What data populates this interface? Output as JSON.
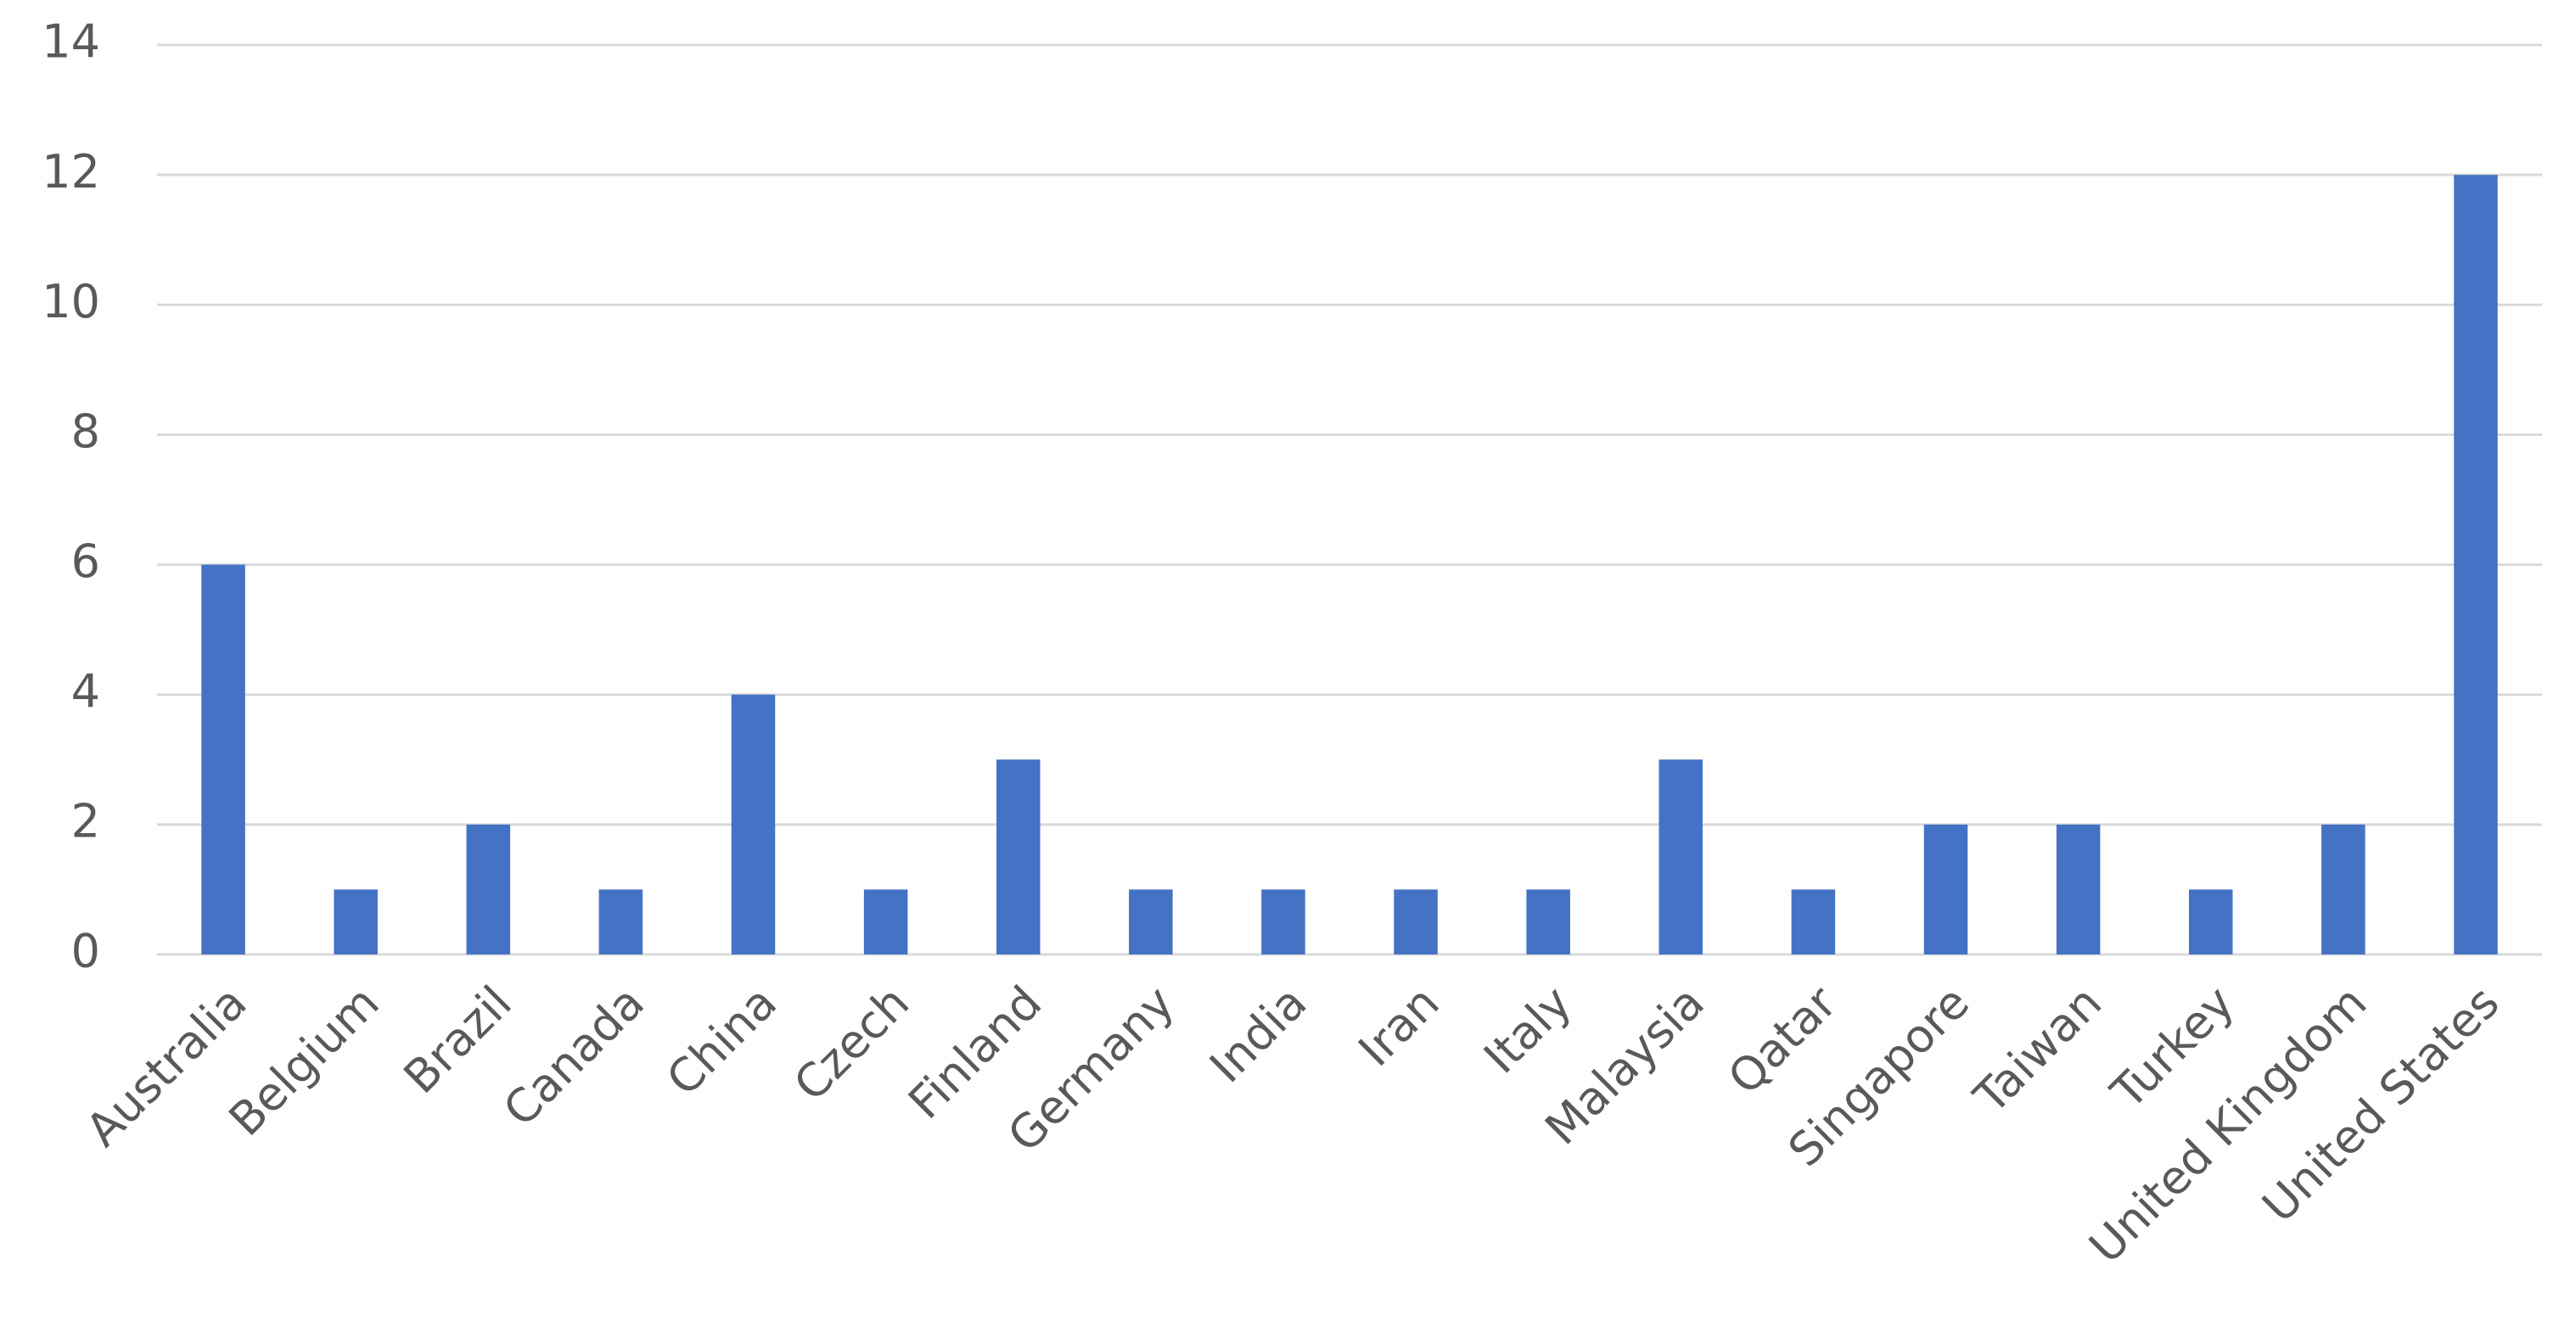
{
  "chart_data": {
    "type": "bar",
    "categories": [
      "Australia",
      "Belgium",
      "Brazil",
      "Canada",
      "China",
      "Czech",
      "Finland",
      "Germany",
      "India",
      "Iran",
      "Italy",
      "Malaysia",
      "Qatar",
      "Singapore",
      "Taiwan",
      "Turkey",
      "United Kingdom",
      "United States"
    ],
    "values": [
      6,
      1,
      2,
      1,
      4,
      1,
      3,
      1,
      1,
      1,
      1,
      3,
      1,
      2,
      2,
      1,
      2,
      12
    ],
    "color": "#4472c4",
    "ylim": [
      0,
      14
    ],
    "yticks": [
      0,
      2,
      4,
      6,
      8,
      10,
      12,
      14
    ],
    "grid": true
  }
}
